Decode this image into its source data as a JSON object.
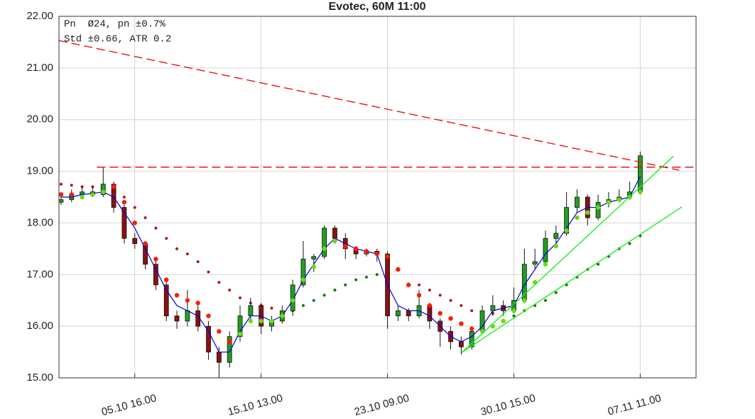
{
  "chart_data": {
    "type": "candlestick",
    "title": "Evotec, 60M 11:00",
    "annotations": [
      "Pn  Ø24, pn ±0.7%",
      "Std ±0.66, ATR 0.2"
    ],
    "x": [
      0,
      1,
      2,
      3,
      4,
      5,
      6,
      7,
      8,
      9,
      10,
      11,
      12,
      13,
      14,
      15,
      16,
      17,
      18,
      19,
      20,
      21,
      22,
      23,
      24,
      25,
      26,
      27,
      28,
      29,
      30,
      31,
      32,
      33,
      34,
      35,
      36,
      37,
      38,
      39,
      40,
      41,
      42,
      43,
      44,
      45,
      46,
      47,
      48,
      49,
      50,
      51,
      52,
      53,
      54,
      55
    ],
    "open": [
      18.4,
      18.45,
      18.55,
      18.6,
      18.55,
      18.75,
      18.3,
      17.7,
      17.6,
      17.2,
      16.8,
      16.2,
      16.1,
      16.3,
      16.0,
      15.5,
      15.3,
      15.8,
      16.2,
      16.4,
      16.0,
      16.1,
      16.3,
      16.8,
      17.3,
      17.35,
      17.9,
      17.7,
      17.5,
      17.4,
      17.45,
      17.4,
      16.2,
      16.3,
      16.2,
      16.4,
      16.1,
      15.9,
      15.7,
      15.6,
      15.9,
      16.3,
      16.4,
      16.3,
      16.5,
      17.2,
      17.25,
      17.7,
      17.8,
      18.3,
      18.5,
      18.1,
      18.4,
      18.45,
      18.5,
      18.6
    ],
    "high": [
      18.6,
      18.65,
      18.7,
      18.7,
      19.08,
      18.8,
      18.35,
      17.8,
      17.65,
      17.3,
      16.9,
      16.3,
      16.7,
      16.4,
      16.1,
      15.6,
      15.9,
      16.4,
      16.55,
      16.45,
      16.2,
      16.4,
      16.9,
      17.65,
      17.4,
      17.95,
      17.95,
      17.8,
      17.55,
      17.5,
      17.5,
      17.45,
      16.4,
      16.35,
      16.7,
      16.45,
      16.15,
      16.0,
      15.8,
      16.0,
      16.4,
      16.6,
      16.5,
      16.75,
      17.5,
      17.5,
      17.85,
      17.95,
      18.6,
      18.65,
      18.55,
      18.55,
      18.6,
      18.65,
      18.8,
      19.38
    ],
    "low": [
      18.35,
      18.4,
      18.5,
      18.5,
      18.5,
      18.2,
      17.6,
      17.5,
      17.1,
      16.7,
      16.1,
      15.95,
      16.0,
      15.9,
      15.35,
      15.0,
      15.2,
      15.7,
      16.1,
      15.85,
      15.9,
      16.05,
      16.2,
      16.75,
      17.05,
      17.3,
      17.6,
      17.3,
      17.3,
      17.35,
      17.25,
      15.95,
      16.1,
      16.1,
      16.15,
      15.95,
      15.6,
      15.55,
      15.45,
      15.55,
      15.85,
      16.2,
      16.2,
      16.25,
      16.45,
      17.1,
      17.2,
      17.6,
      17.75,
      18.2,
      17.95,
      18.05,
      18.3,
      18.4,
      18.45,
      18.55
    ],
    "close": [
      18.45,
      18.55,
      18.6,
      18.55,
      18.75,
      18.3,
      17.7,
      17.6,
      17.2,
      16.8,
      16.2,
      16.1,
      16.3,
      16.0,
      15.5,
      15.3,
      15.8,
      16.2,
      16.4,
      16.0,
      16.1,
      16.3,
      16.8,
      17.3,
      17.35,
      17.9,
      17.7,
      17.5,
      17.4,
      17.45,
      17.4,
      16.2,
      16.3,
      16.2,
      16.4,
      16.1,
      15.9,
      15.7,
      15.6,
      15.9,
      16.3,
      16.4,
      16.3,
      16.5,
      17.2,
      17.25,
      17.7,
      17.8,
      18.3,
      18.5,
      18.1,
      18.4,
      18.45,
      18.5,
      18.6,
      19.3
    ],
    "up_color": "#1fa01f",
    "down_color": "#8b1010",
    "xlim": [
      -0.2,
      60.3
    ],
    "xticks": [
      {
        "value": 7,
        "label": "05.10 16.00"
      },
      {
        "value": 19,
        "label": "15.10 13.00"
      },
      {
        "value": 31,
        "label": "23.10 09.00"
      },
      {
        "value": 43,
        "label": "30.10 15.00"
      },
      {
        "value": 55,
        "label": "07.11 11.00"
      }
    ],
    "ylim": [
      15,
      22
    ],
    "yticks": [
      {
        "value": 15,
        "label": "15.00"
      },
      {
        "value": 16,
        "label": "16.00"
      },
      {
        "value": 17,
        "label": "17.00"
      },
      {
        "value": 18,
        "label": "18.00"
      },
      {
        "value": 19,
        "label": "19.00"
      },
      {
        "value": 20,
        "label": "20.00"
      },
      {
        "value": 21,
        "label": "21.00"
      },
      {
        "value": 22,
        "label": "22.00"
      }
    ],
    "grid": true,
    "series": [
      {
        "type": "line",
        "color": "#0000e0",
        "values": [
          18.5,
          18.5,
          18.55,
          18.57,
          18.6,
          18.5,
          18.2,
          17.9,
          17.5,
          17.1,
          16.7,
          16.4,
          16.3,
          16.2,
          15.9,
          15.5,
          15.5,
          15.9,
          16.2,
          16.2,
          16.1,
          16.2,
          16.5,
          16.9,
          17.2,
          17.5,
          17.7,
          17.6,
          17.5,
          17.45,
          17.4,
          16.8,
          16.4,
          16.3,
          16.3,
          16.2,
          16.0,
          15.8,
          15.7,
          15.8,
          16.0,
          16.3,
          16.35,
          16.4,
          16.8,
          17.1,
          17.4,
          17.6,
          17.9,
          18.2,
          18.3,
          18.3,
          18.4,
          18.45,
          18.5,
          18.9
        ]
      },
      {
        "type": "dots",
        "size": 3.2,
        "color": "#ff1a00",
        "values": [
          18.55,
          18.55,
          null,
          null,
          null,
          18.7,
          18.4,
          18.0,
          17.6,
          17.3,
          16.9,
          16.6,
          16.5,
          16.45,
          16.2,
          15.9,
          15.7,
          null,
          null,
          null,
          null,
          null,
          null,
          null,
          null,
          null,
          null,
          17.55,
          17.5,
          17.45,
          17.4,
          17.35,
          17.1,
          16.8,
          16.6,
          16.4,
          16.25,
          16.15,
          16.05,
          15.95,
          null,
          null,
          null,
          null,
          null,
          null,
          null,
          null,
          null,
          null,
          null,
          null,
          null,
          null,
          null,
          null
        ]
      },
      {
        "type": "dots",
        "size": 3.2,
        "color": "#66dd11",
        "values": [
          null,
          null,
          18.5,
          18.55,
          18.6,
          null,
          null,
          null,
          null,
          null,
          null,
          null,
          null,
          null,
          null,
          null,
          null,
          15.85,
          16.1,
          16.1,
          16.1,
          16.2,
          16.5,
          16.9,
          17.15,
          17.5,
          17.65,
          null,
          null,
          null,
          null,
          null,
          null,
          null,
          null,
          null,
          null,
          null,
          null,
          null,
          15.9,
          16.0,
          16.1,
          16.3,
          16.5,
          16.85,
          17.2,
          17.55,
          17.85,
          18.1,
          18.2,
          18.3,
          18.4,
          18.45,
          18.5,
          18.6
        ]
      },
      {
        "type": "dots",
        "size": 2,
        "color": "#b01818",
        "values": [
          18.75,
          18.73,
          18.7,
          18.7,
          18.68,
          18.6,
          18.5,
          18.3,
          18.1,
          17.9,
          17.7,
          17.5,
          17.4,
          17.25,
          17.05,
          16.85,
          16.7,
          16.55,
          16.45,
          16.4,
          16.35,
          null,
          null,
          null,
          null,
          null,
          null,
          null,
          null,
          null,
          null,
          null,
          null,
          null,
          16.8,
          16.7,
          16.6,
          16.5,
          16.4,
          16.3,
          16.27,
          16.25,
          null,
          null,
          null,
          null,
          null,
          null,
          null,
          null,
          null,
          null,
          null,
          null,
          null,
          null
        ]
      },
      {
        "type": "dots",
        "size": 2,
        "color": "#0a7a0a",
        "values": [
          null,
          null,
          null,
          null,
          null,
          null,
          null,
          null,
          null,
          null,
          null,
          null,
          null,
          null,
          null,
          null,
          null,
          null,
          null,
          null,
          null,
          16.15,
          16.3,
          16.4,
          16.5,
          16.6,
          16.7,
          16.8,
          16.9,
          16.95,
          17.0,
          17.05,
          null,
          null,
          null,
          null,
          null,
          null,
          null,
          null,
          null,
          null,
          16.1,
          16.2,
          16.3,
          16.4,
          16.5,
          16.65,
          16.8,
          16.95,
          17.1,
          17.2,
          17.35,
          17.5,
          17.6,
          17.75
        ]
      }
    ],
    "lines": [
      {
        "color": "#ee1111",
        "dash": true,
        "x": [
          -0.2,
          58.7
        ],
        "y": [
          21.53,
          19.02
        ]
      },
      {
        "color": "#ee1111",
        "dash": true,
        "x": [
          3.4,
          60.3
        ],
        "y": [
          19.08,
          19.08
        ]
      },
      {
        "color": "#22ee22",
        "dash": false,
        "x": [
          38.05,
          58.15
        ],
        "y": [
          15.49,
          19.29
        ]
      },
      {
        "color": "#22ee22",
        "dash": false,
        "x": [
          38.05,
          58.95
        ],
        "y": [
          15.49,
          18.31
        ]
      }
    ]
  }
}
